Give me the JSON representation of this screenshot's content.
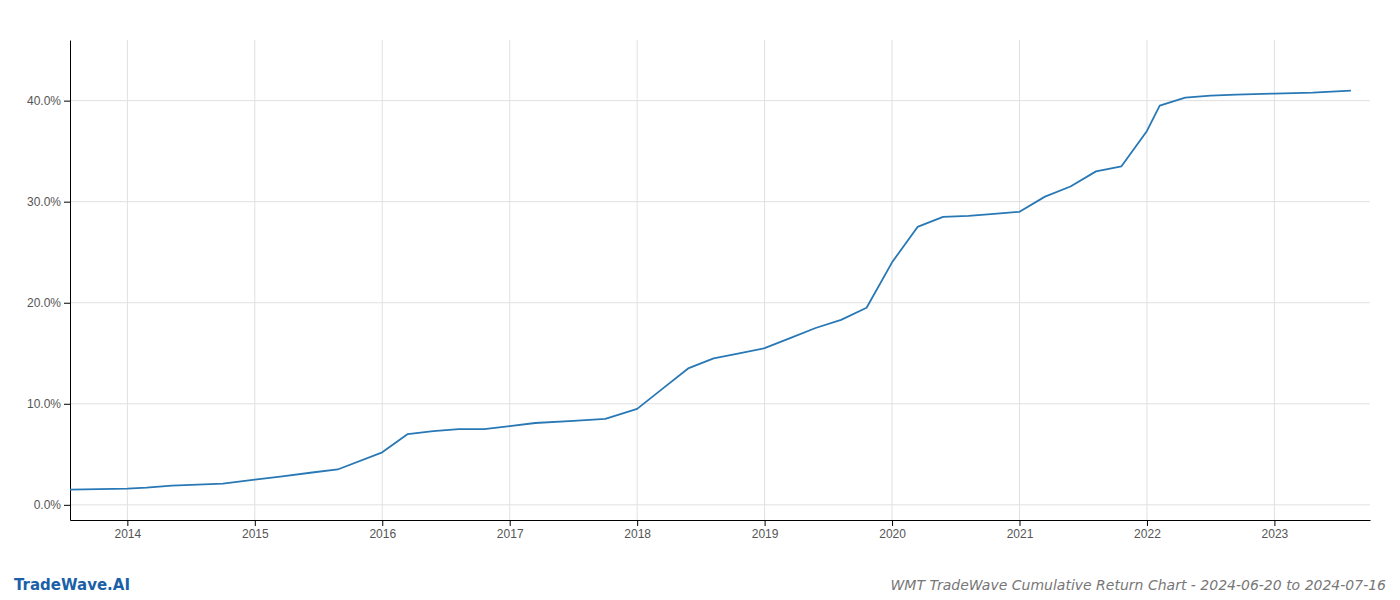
{
  "chart_data": {
    "type": "line",
    "title": "WMT TradeWave Cumulative Return Chart - 2024-06-20 to 2024-07-16",
    "annotations": [
      "TradeWave.AI"
    ],
    "x": [
      2013.55,
      2014.0,
      2014.15,
      2014.35,
      2014.55,
      2014.75,
      2015.0,
      2015.2,
      2015.45,
      2015.65,
      2016.0,
      2016.2,
      2016.4,
      2016.6,
      2016.8,
      2017.0,
      2017.2,
      2017.5,
      2017.75,
      2018.0,
      2018.2,
      2018.4,
      2018.6,
      2018.8,
      2019.0,
      2019.2,
      2019.4,
      2019.6,
      2019.8,
      2020.0,
      2020.2,
      2020.4,
      2020.6,
      2020.8,
      2021.0,
      2021.2,
      2021.4,
      2021.6,
      2021.8,
      2022.0,
      2022.1,
      2022.3,
      2022.5,
      2022.7,
      2023.0,
      2023.3,
      2023.6
    ],
    "values": [
      1.5,
      1.6,
      1.7,
      1.9,
      2.0,
      2.1,
      2.5,
      2.8,
      3.2,
      3.5,
      5.2,
      7.0,
      7.3,
      7.5,
      7.5,
      7.8,
      8.1,
      8.3,
      8.5,
      9.5,
      11.5,
      13.5,
      14.5,
      15.0,
      15.5,
      16.5,
      17.5,
      18.3,
      19.5,
      24.0,
      27.5,
      28.5,
      28.6,
      28.8,
      29.0,
      30.5,
      31.5,
      33.0,
      33.5,
      37.0,
      39.5,
      40.3,
      40.5,
      40.6,
      40.7,
      40.8,
      41.0
    ],
    "color": "#2878b5",
    "xlim": [
      2013.55,
      2023.75
    ],
    "xticks": [
      2014,
      2015,
      2016,
      2017,
      2018,
      2019,
      2020,
      2021,
      2022,
      2023
    ],
    "ylim": [
      -1.5,
      46
    ],
    "yticks": [
      {
        "value": 0.0,
        "label": "0.0%"
      },
      {
        "value": 10.0,
        "label": "10.0%"
      },
      {
        "value": 20.0,
        "label": "20.0%"
      },
      {
        "value": 30.0,
        "label": "30.0%"
      },
      {
        "value": 40.0,
        "label": "40.0%"
      }
    ],
    "grid": true
  }
}
